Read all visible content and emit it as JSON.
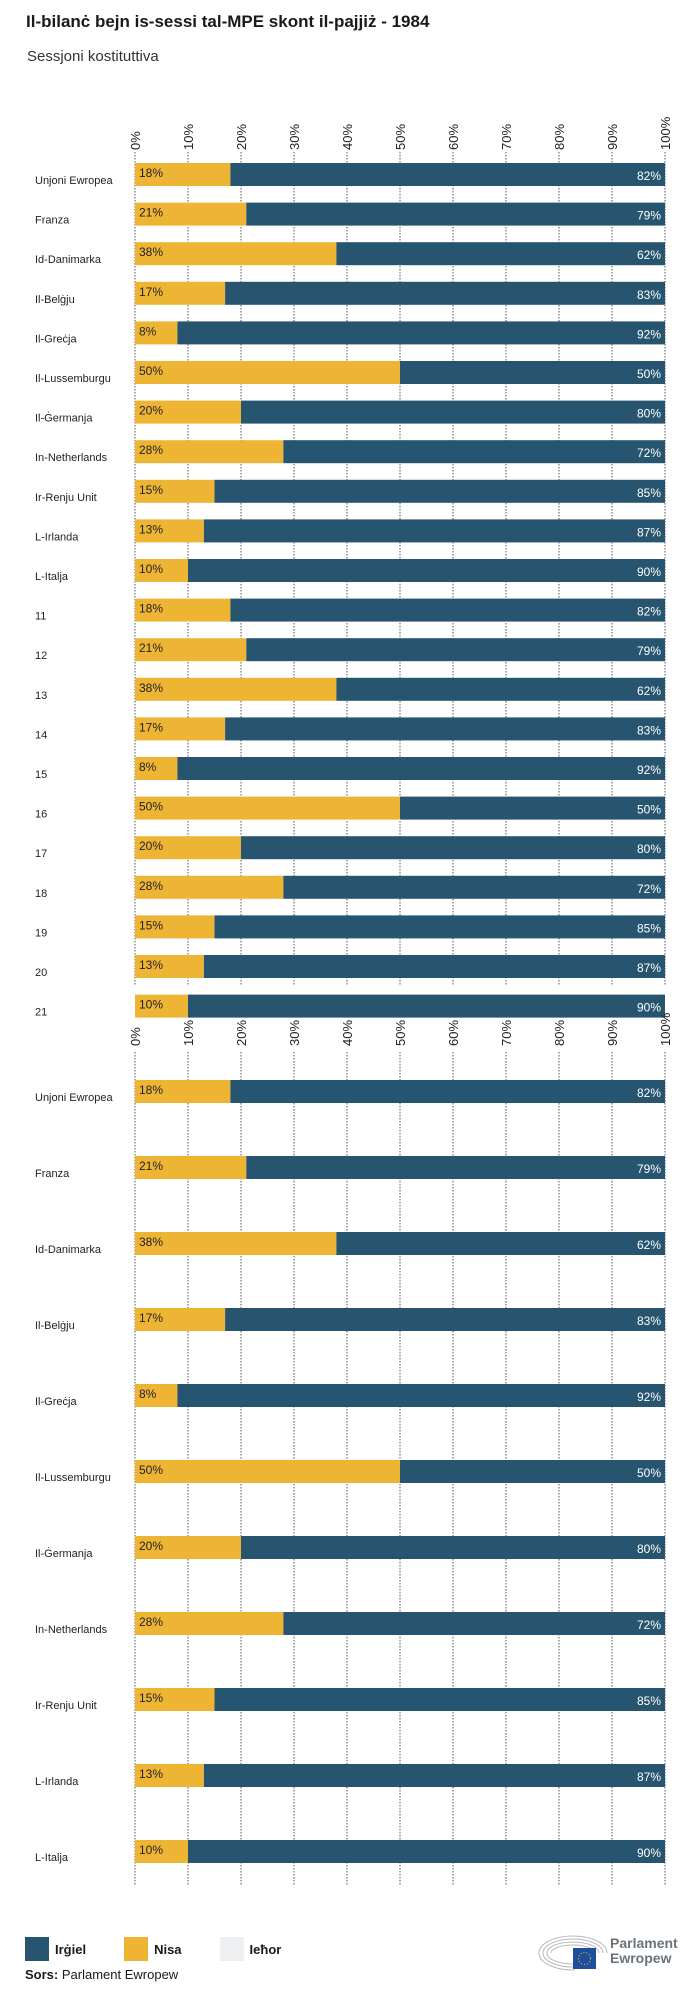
{
  "title": "Il-bilanċ bejn is-sessi tal-MPE skont il-pajjiż - 1984",
  "subtitle": "Sessjoni kostituttiva",
  "colors": {
    "irgiel": "#27556f",
    "nisa": "#eeb535",
    "iehor": "#eeeff1"
  },
  "legend": [
    {
      "label": "Irġiel",
      "color": "#27556f"
    },
    {
      "label": "Nisa",
      "color": "#eeb535"
    },
    {
      "label": "Ieħor",
      "color": "#eeeff1"
    }
  ],
  "source_label": "Sors:",
  "source_text": "Parlament Ewropew",
  "logo_text": [
    "Parlament",
    "Ewropew"
  ],
  "chart_data": [
    {
      "type": "bar",
      "stacked": true,
      "orientation": "horizontal",
      "xlim": [
        0,
        100
      ],
      "ticks": [
        "0%",
        "10%",
        "20%",
        "30%",
        "40%",
        "50%",
        "60%",
        "70%",
        "80%",
        "90%",
        "100%"
      ],
      "grid": true,
      "categories": [
        "Unjoni Ewropea",
        "Franza",
        "Id-Danimarka",
        "Il-Belġju",
        "Il-Greċja",
        "Il-Lussemburgu",
        "Il-Ġermanja",
        "In-Netherlands",
        "Ir-Renju Unit",
        "L-Irlanda",
        "L-Italja",
        "11",
        "12",
        "13",
        "14",
        "15",
        "16",
        "17",
        "18",
        "19",
        "20",
        "21"
      ],
      "series": [
        {
          "name": "Nisa",
          "values": [
            18,
            21,
            38,
            17,
            8,
            50,
            20,
            28,
            15,
            13,
            10,
            18,
            21,
            38,
            17,
            8,
            50,
            20,
            28,
            15,
            13,
            10
          ]
        },
        {
          "name": "Irġiel",
          "values": [
            82,
            79,
            62,
            83,
            92,
            50,
            80,
            72,
            85,
            87,
            90,
            82,
            79,
            62,
            83,
            92,
            50,
            80,
            72,
            85,
            87,
            90
          ]
        }
      ]
    },
    {
      "type": "bar",
      "stacked": true,
      "orientation": "horizontal",
      "xlim": [
        0,
        100
      ],
      "ticks": [
        "0%",
        "10%",
        "20%",
        "30%",
        "40%",
        "50%",
        "60%",
        "70%",
        "80%",
        "90%",
        "100%"
      ],
      "grid": true,
      "categories": [
        "Unjoni Ewropea",
        "Franza",
        "Id-Danimarka",
        "Il-Belġju",
        "Il-Greċja",
        "Il-Lussemburgu",
        "Il-Ġermanja",
        "In-Netherlands",
        "Ir-Renju Unit",
        "L-Irlanda",
        "L-Italja"
      ],
      "series": [
        {
          "name": "Nisa",
          "values": [
            18,
            21,
            38,
            17,
            8,
            50,
            20,
            28,
            15,
            13,
            10
          ]
        },
        {
          "name": "Irġiel",
          "values": [
            82,
            79,
            62,
            83,
            92,
            50,
            80,
            72,
            85,
            87,
            90
          ]
        }
      ]
    }
  ]
}
